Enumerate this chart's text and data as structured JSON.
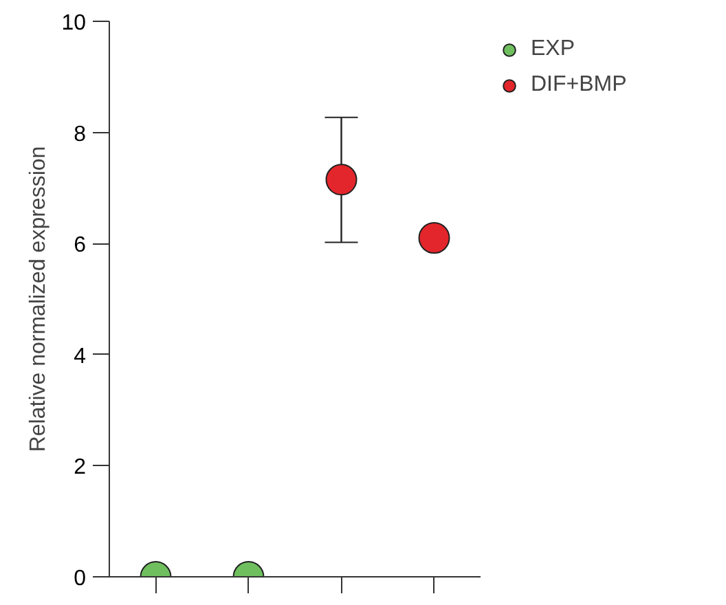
{
  "chart_data": {
    "type": "scatter",
    "ylabel": "Relative normalized expression",
    "categories": [
      null,
      null,
      null,
      null
    ],
    "series": [
      {
        "name": "EXP",
        "color": "#6fbf5f",
        "values": [
          0,
          0,
          null,
          null
        ]
      },
      {
        "name": "DIF+BMP",
        "color": "#e3262b",
        "values": [
          null,
          null,
          7.15,
          6.1
        ],
        "errors": [
          null,
          null,
          [
            6.02,
            8.27
          ],
          null
        ]
      }
    ],
    "ylim": [
      0,
      10
    ],
    "yticks": [
      0,
      2,
      4,
      6,
      8,
      10
    ],
    "tick_labels": "y",
    "grid": false,
    "legend": "top right",
    "marker": "circle"
  }
}
